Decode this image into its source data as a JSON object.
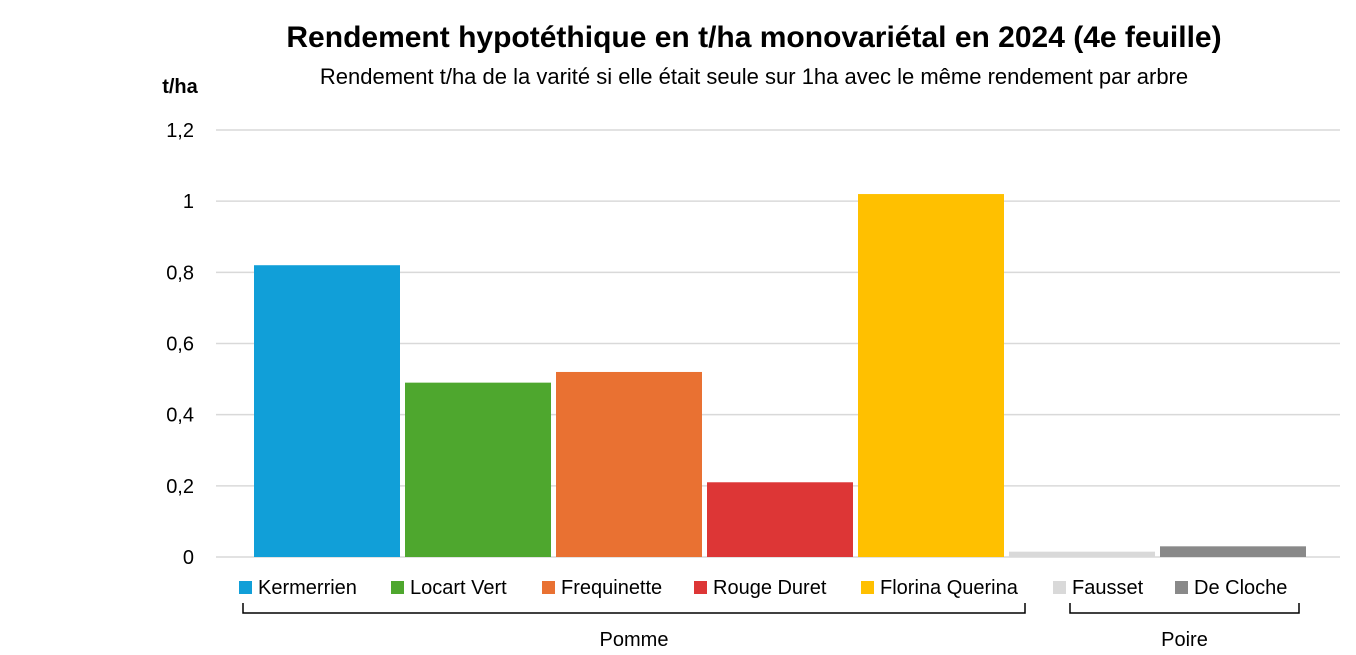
{
  "chart_data": {
    "type": "bar",
    "title": "Rendement hypotéthique en t/ha monovariétal  en 2024 (4e feuille)",
    "subtitle": "Rendement t/ha de la varité si elle était seule sur 1ha avec le même rendement par arbre",
    "ylabel": "t/ha",
    "ylim": [
      0,
      1.2
    ],
    "yticks": [
      "0",
      "0,2",
      "0,4",
      "0,6",
      "0,8",
      "1",
      "1,2"
    ],
    "grid": true,
    "legend_position": "bottom",
    "series": [
      {
        "name": "Kermerrien",
        "value": 0.82,
        "color": "#119fd8",
        "group": "Pomme"
      },
      {
        "name": "Locart Vert",
        "value": 0.49,
        "color": "#4ea72e",
        "group": "Pomme"
      },
      {
        "name": "Frequinette",
        "value": 0.52,
        "color": "#e97132",
        "group": "Pomme"
      },
      {
        "name": "Rouge Duret",
        "value": 0.21,
        "color": "#dd3636",
        "group": "Pomme"
      },
      {
        "name": "Florina Querina",
        "value": 1.02,
        "color": "#ffc000",
        "group": "Pomme"
      },
      {
        "name": "Fausset",
        "value": 0.015,
        "color": "#d9d9d9",
        "group": "Poire"
      },
      {
        "name": "De Cloche",
        "value": 0.03,
        "color": "#898989",
        "group": "Poire"
      }
    ],
    "groups": [
      "Pomme",
      "Poire"
    ]
  }
}
